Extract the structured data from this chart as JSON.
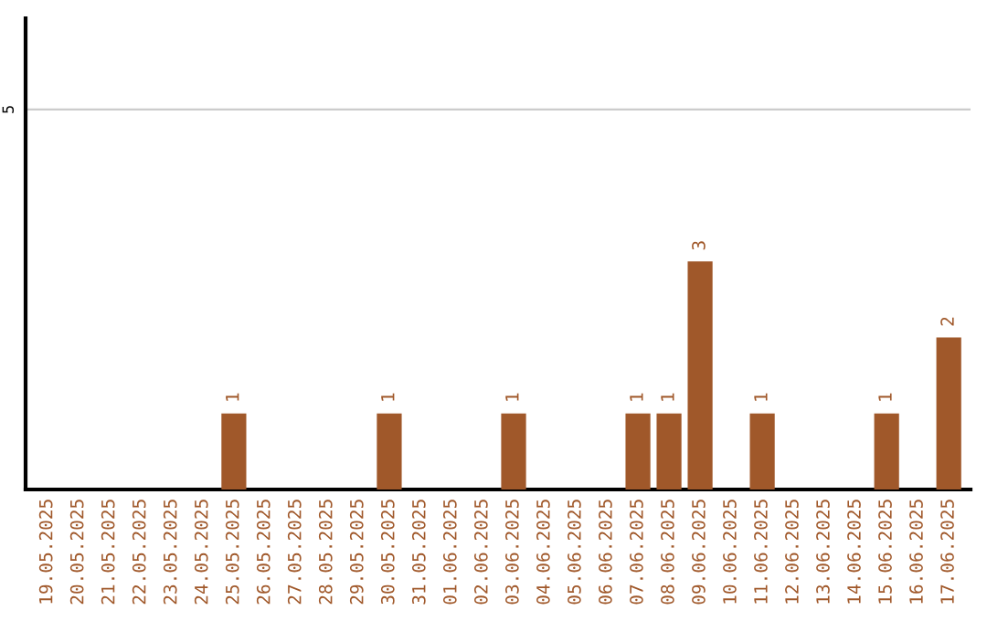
{
  "chart_data": {
    "type": "bar",
    "categories": [
      "19.05.2025",
      "20.05.2025",
      "21.05.2025",
      "22.05.2025",
      "23.05.2025",
      "24.05.2025",
      "25.05.2025",
      "26.05.2025",
      "27.05.2025",
      "28.05.2025",
      "29.05.2025",
      "30.05.2025",
      "31.05.2025",
      "01.06.2025",
      "02.06.2025",
      "03.06.2025",
      "04.06.2025",
      "05.06.2025",
      "06.06.2025",
      "07.06.2025",
      "08.06.2025",
      "09.06.2025",
      "10.06.2025",
      "11.06.2025",
      "12.06.2025",
      "13.06.2025",
      "14.06.2025",
      "15.06.2025",
      "16.06.2025",
      "17.06.2025"
    ],
    "series": [
      {
        "color": "#a0582a",
        "values": [
          0,
          0,
          0,
          0,
          0,
          0,
          1,
          0,
          0,
          0,
          0,
          1,
          0,
          0,
          0,
          1,
          0,
          0,
          0,
          1,
          1,
          3,
          0,
          1,
          0,
          0,
          0,
          1,
          0,
          2
        ],
        "value_labels": [
          null,
          null,
          null,
          null,
          null,
          null,
          "1",
          null,
          null,
          null,
          null,
          "1",
          null,
          null,
          null,
          "1",
          null,
          null,
          null,
          "1",
          "1",
          "3",
          null,
          "1",
          null,
          null,
          null,
          "1",
          null,
          "2"
        ]
      }
    ],
    "ylim": [
      0,
      6.2
    ],
    "yticks": [
      5
    ],
    "grid": "y",
    "legend": false
  }
}
